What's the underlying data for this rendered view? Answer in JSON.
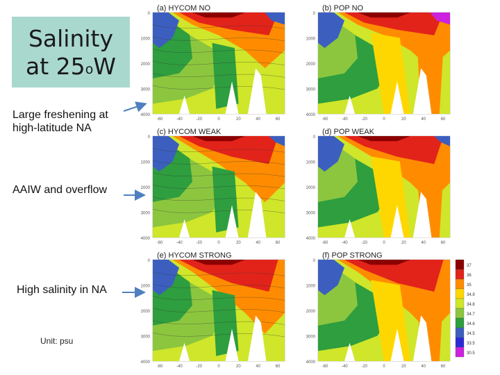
{
  "title": {
    "line1": "Salinity",
    "line2_prefix": "at 25",
    "line2_sup": "o",
    "line2_suffix": "W"
  },
  "notes": {
    "freshening": [
      "Large freshening at",
      "high-latitude NA"
    ],
    "aaiw": "AAIW and overflow",
    "high_salinity": "High salinity in NA",
    "unit": "Unit: psu"
  },
  "panels": [
    {
      "label": "(a) HYCOM NO"
    },
    {
      "label": "(b) POP NO"
    },
    {
      "label": "(c) HYCOM WEAK"
    },
    {
      "label": "(d) POP WEAK"
    },
    {
      "label": "(e) HYCOM STRONG"
    },
    {
      "label": "(f) POP STRONG"
    }
  ],
  "depth_ticks": [
    "0",
    "1000",
    "2000",
    "3000",
    "4000"
  ],
  "lat_ticks": [
    "-60",
    "-40",
    "-20",
    "0",
    "20",
    "40",
    "60"
  ],
  "colorbar": {
    "labels": [
      "37",
      "36",
      "35",
      "34.9",
      "34.8",
      "34.7",
      "34.6",
      "34.5",
      "33.5",
      "30.5"
    ],
    "colors": [
      "#8b0000",
      "#e2231a",
      "#ff8c00",
      "#ffd700",
      "#cfe62a",
      "#8cc63f",
      "#2e9e3e",
      "#3c5fbf",
      "#2b2bd6",
      "#cc22dd"
    ]
  },
  "colors": {
    "title_bg": "#a9d8cf",
    "arrow": "#4f7fbf"
  }
}
